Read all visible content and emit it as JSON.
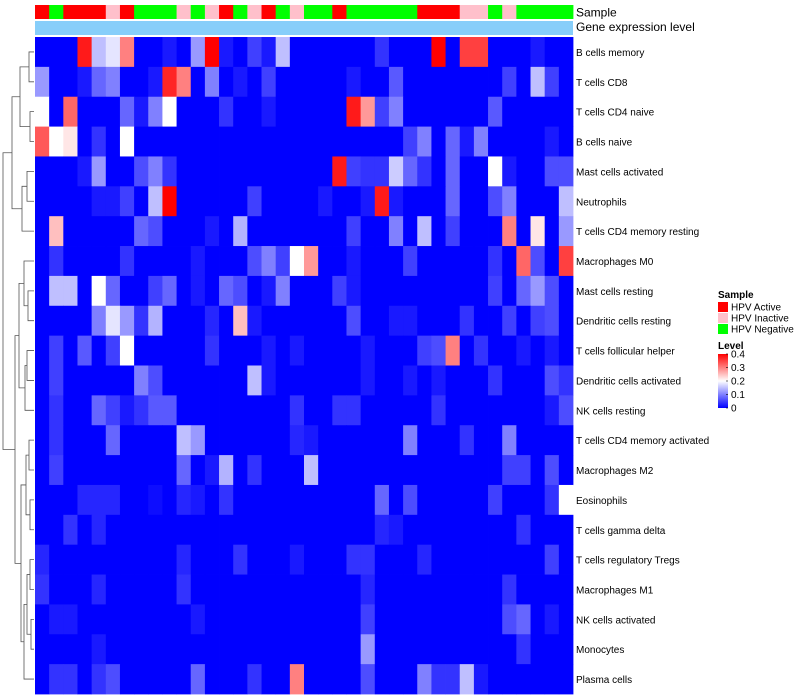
{
  "chart_data": {
    "type": "heatmap",
    "annotation_tracks": [
      {
        "name": "Sample"
      },
      {
        "name": "Gene expression level"
      }
    ],
    "legend": {
      "sample_title": "Sample",
      "sample_entries": [
        {
          "label": "HPV Active",
          "color": "#ff0000"
        },
        {
          "label": "HPV Inactive",
          "color": "#ffc0cb"
        },
        {
          "label": "HPV Negative",
          "color": "#00ff00"
        }
      ],
      "level_title": "Level",
      "level_ticks": [
        {
          "value": 0.4,
          "label": "0.4"
        },
        {
          "value": 0.3,
          "label": "0.3"
        },
        {
          "value": 0.2,
          "label": "0.2"
        },
        {
          "value": 0.1,
          "label": "0.1"
        },
        {
          "value": 0,
          "label": "0"
        }
      ]
    },
    "value_range": [
      0,
      0.4
    ],
    "colors": {
      "low": "#0000ff",
      "mid": "#ffffff",
      "high": "#ff0000",
      "expression_bar": "#87cefa"
    },
    "sample_groups": [
      "HPV Active",
      "HPV Negative",
      "HPV Active",
      "HPV Active",
      "HPV Active",
      "HPV Inactive",
      "HPV Active",
      "HPV Negative",
      "HPV Negative",
      "HPV Negative",
      "HPV Inactive",
      "HPV Negative",
      "HPV Inactive",
      "HPV Active",
      "HPV Negative",
      "HPV Inactive",
      "HPV Active",
      "HPV Negative",
      "HPV Inactive",
      "HPV Negative",
      "HPV Negative",
      "HPV Active",
      "HPV Negative",
      "HPV Negative",
      "HPV Negative",
      "HPV Negative",
      "HPV Negative",
      "HPV Active",
      "HPV Active",
      "HPV Active",
      "HPV Inactive",
      "HPV Inactive",
      "HPV Negative",
      "HPV Inactive",
      "HPV Negative",
      "HPV Negative",
      "HPV Negative",
      "HPV Negative"
    ],
    "rows": [
      {
        "label": "B cells memory",
        "values": [
          0,
          0,
          0,
          0.38,
          0.15,
          0.18,
          0.3,
          0,
          0,
          0.02,
          0,
          0.12,
          0.4,
          0.02,
          0,
          0.05,
          0.02,
          0.15,
          0,
          0,
          0,
          0,
          0,
          0,
          0.04,
          0,
          0,
          0,
          0.4,
          0,
          0.35,
          0.35,
          0,
          0,
          0,
          0.02,
          0,
          0
        ]
      },
      {
        "label": "T cells CD8",
        "values": [
          0.12,
          0,
          0,
          0.02,
          0.08,
          0.1,
          0,
          0,
          0.02,
          0.37,
          0.3,
          0,
          0.1,
          0,
          0.02,
          0,
          0.05,
          0,
          0,
          0,
          0,
          0,
          0.02,
          0,
          0,
          0.07,
          0,
          0,
          0,
          0,
          0,
          0,
          0,
          0.05,
          0,
          0.15,
          0.05,
          0
        ]
      },
      {
        "label": "T cells CD4 naive",
        "values": [
          0.2,
          0,
          0.32,
          0,
          0,
          0,
          0.08,
          0.02,
          0.1,
          0.2,
          0,
          0,
          0,
          0.04,
          0,
          0,
          0.02,
          0,
          0,
          0,
          0,
          0,
          0.38,
          0.28,
          0.05,
          0.1,
          0,
          0,
          0,
          0,
          0,
          0,
          0.07,
          0,
          0,
          0,
          0,
          0
        ]
      },
      {
        "label": "B cells naive",
        "values": [
          0.33,
          0.2,
          0.22,
          0,
          0.04,
          0,
          0.2,
          0,
          0,
          0,
          0,
          0,
          0,
          0,
          0,
          0,
          0,
          0,
          0,
          0,
          0,
          0,
          0,
          0,
          0,
          0,
          0.05,
          0.1,
          0,
          0.08,
          0.02,
          0.1,
          0,
          0,
          0,
          0,
          0.02,
          0
        ]
      },
      {
        "label": "Mast cells activated",
        "values": [
          0,
          0,
          0,
          0.02,
          0.12,
          0,
          0,
          0.06,
          0.1,
          0.04,
          0,
          0,
          0,
          0,
          0,
          0,
          0,
          0,
          0,
          0,
          0,
          0.38,
          0.05,
          0.04,
          0.04,
          0.16,
          0.08,
          0.04,
          0,
          0.08,
          0,
          0,
          0.2,
          0.02,
          0,
          0,
          0.06,
          0.06
        ]
      },
      {
        "label": "Neutrophils",
        "values": [
          0,
          0,
          0,
          0,
          0.02,
          0.02,
          0.05,
          0,
          0.15,
          0.4,
          0,
          0,
          0,
          0,
          0,
          0.05,
          0,
          0,
          0,
          0,
          0.02,
          0,
          0,
          0.02,
          0.38,
          0.02,
          0,
          0,
          0,
          0.08,
          0,
          0,
          0.06,
          0.1,
          0,
          0,
          0,
          0.15
        ]
      },
      {
        "label": "T cells CD4 memory resting",
        "values": [
          0,
          0.25,
          0,
          0,
          0,
          0,
          0,
          0.08,
          0.06,
          0,
          0,
          0,
          0.02,
          0,
          0.14,
          0,
          0,
          0,
          0,
          0,
          0,
          0,
          0.05,
          0,
          0,
          0.1,
          0,
          0.15,
          0,
          0.05,
          0,
          0,
          0,
          0.3,
          0,
          0.22,
          0,
          0.12
        ]
      },
      {
        "label": "Macrophages M0",
        "values": [
          0,
          0.04,
          0,
          0,
          0,
          0,
          0.04,
          0,
          0,
          0,
          0,
          0.02,
          0,
          0,
          0,
          0.06,
          0.1,
          0.05,
          0.2,
          0.28,
          0,
          0,
          0.02,
          0,
          0,
          0,
          0.05,
          0,
          0,
          0,
          0,
          0,
          0.04,
          0,
          0.32,
          0.06,
          0,
          0.35
        ]
      },
      {
        "label": "Mast cells resting",
        "values": [
          0,
          0.15,
          0.15,
          0,
          0.2,
          0.08,
          0,
          0,
          0.05,
          0.08,
          0,
          0.02,
          0,
          0.08,
          0.06,
          0,
          0.02,
          0.1,
          0,
          0,
          0,
          0.05,
          0.02,
          0,
          0,
          0,
          0,
          0,
          0,
          0,
          0,
          0,
          0.05,
          0,
          0.08,
          0.12,
          0.06,
          0
        ]
      },
      {
        "label": "Dendritic cells resting",
        "values": [
          0,
          0,
          0,
          0,
          0.1,
          0.18,
          0.12,
          0.04,
          0.14,
          0,
          0,
          0,
          0.03,
          0,
          0.25,
          0.02,
          0,
          0,
          0,
          0,
          0,
          0,
          0.06,
          0,
          0,
          0.02,
          0.02,
          0,
          0,
          0,
          0.04,
          0,
          0,
          0.05,
          0,
          0.05,
          0.06,
          0
        ]
      },
      {
        "label": "T cells follicular helper",
        "values": [
          0,
          0.05,
          0,
          0.07,
          0,
          0.05,
          0.2,
          0,
          0,
          0,
          0,
          0,
          0.04,
          0,
          0,
          0,
          0.02,
          0,
          0.02,
          0,
          0,
          0,
          0,
          0.02,
          0,
          0,
          0,
          0.05,
          0.06,
          0.3,
          0,
          0.04,
          0,
          0,
          0.02,
          0,
          0.02,
          0
        ]
      },
      {
        "label": "Dendritic cells activated",
        "values": [
          0,
          0.05,
          0,
          0,
          0,
          0,
          0,
          0.1,
          0.06,
          0,
          0,
          0,
          0,
          0,
          0,
          0.15,
          0.02,
          0,
          0,
          0,
          0,
          0,
          0,
          0.02,
          0,
          0,
          0.02,
          0,
          0.02,
          0,
          0,
          0,
          0.04,
          0,
          0,
          0,
          0.06,
          0.04
        ]
      },
      {
        "label": "NK cells resting",
        "values": [
          0,
          0.04,
          0,
          0,
          0.08,
          0.05,
          0.02,
          0.04,
          0.07,
          0.07,
          0,
          0,
          0,
          0,
          0,
          0,
          0,
          0,
          0.04,
          0,
          0,
          0.04,
          0.04,
          0,
          0,
          0,
          0,
          0,
          0.04,
          0,
          0,
          0,
          0,
          0,
          0,
          0,
          0.02,
          0.06
        ]
      },
      {
        "label": "T cells CD4 memory activated",
        "values": [
          0,
          0.04,
          0,
          0,
          0,
          0.08,
          0,
          0,
          0,
          0,
          0.15,
          0.12,
          0,
          0,
          0,
          0,
          0,
          0,
          0.03,
          0.02,
          0,
          0,
          0,
          0,
          0,
          0,
          0.1,
          0,
          0,
          0,
          0.04,
          0,
          0,
          0.1,
          0,
          0,
          0,
          0
        ]
      },
      {
        "label": "Macrophages M2",
        "values": [
          0,
          0.05,
          0,
          0,
          0,
          0,
          0,
          0,
          0,
          0,
          0.08,
          0,
          0.02,
          0.14,
          0,
          0.04,
          0,
          0,
          0,
          0.15,
          0,
          0,
          0,
          0,
          0,
          0,
          0,
          0,
          0,
          0,
          0,
          0,
          0,
          0.05,
          0.05,
          0,
          0.06,
          0
        ]
      },
      {
        "label": "Eosinophils",
        "values": [
          0,
          0,
          0,
          0.03,
          0.03,
          0.03,
          0,
          0,
          0.01,
          0,
          0.03,
          0.02,
          0,
          0.04,
          0,
          0,
          0,
          0,
          0,
          0,
          0,
          0,
          0,
          0,
          0.08,
          0,
          0.06,
          0,
          0,
          0,
          0,
          0,
          0.05,
          0,
          0,
          0,
          0.04,
          0.2
        ]
      },
      {
        "label": "T cells gamma delta",
        "values": [
          0,
          0,
          0.04,
          0,
          0.03,
          0,
          0,
          0,
          0,
          0,
          0,
          0,
          0,
          0,
          0,
          0,
          0,
          0,
          0,
          0,
          0,
          0,
          0,
          0,
          0.03,
          0.02,
          0,
          0,
          0,
          0,
          0,
          0,
          0,
          0,
          0.04,
          0,
          0,
          0
        ]
      },
      {
        "label": "T cells regulatory  Tregs",
        "values": [
          0.03,
          0,
          0,
          0,
          0,
          0,
          0,
          0,
          0,
          0,
          0.03,
          0,
          0,
          0,
          0.04,
          0,
          0,
          0,
          0.02,
          0,
          0,
          0,
          0.04,
          0.04,
          0,
          0,
          0,
          0.03,
          0,
          0,
          0,
          0,
          0,
          0,
          0,
          0,
          0.05,
          0
        ]
      },
      {
        "label": "Macrophages M1",
        "values": [
          0.04,
          0,
          0,
          0,
          0.03,
          0,
          0,
          0,
          0,
          0,
          0.04,
          0,
          0,
          0,
          0,
          0,
          0,
          0,
          0,
          0,
          0,
          0,
          0,
          0.03,
          0,
          0,
          0,
          0,
          0,
          0,
          0,
          0,
          0,
          0.04,
          0,
          0,
          0,
          0
        ]
      },
      {
        "label": "NK cells activated",
        "values": [
          0,
          0.02,
          0.02,
          0,
          0,
          0,
          0,
          0,
          0,
          0,
          0,
          0.02,
          0,
          0,
          0,
          0,
          0,
          0,
          0,
          0,
          0,
          0,
          0,
          0.05,
          0,
          0,
          0,
          0,
          0,
          0,
          0,
          0,
          0,
          0.06,
          0.08,
          0,
          0.02,
          0
        ]
      },
      {
        "label": "Monocytes",
        "values": [
          0,
          0,
          0,
          0,
          0.02,
          0,
          0,
          0,
          0,
          0,
          0,
          0,
          0,
          0,
          0,
          0,
          0,
          0,
          0,
          0,
          0,
          0,
          0,
          0.12,
          0,
          0,
          0,
          0,
          0,
          0,
          0,
          0,
          0,
          0,
          0.04,
          0,
          0,
          0
        ]
      },
      {
        "label": "Plasma cells",
        "values": [
          0,
          0.04,
          0.04,
          0,
          0.04,
          0.06,
          0,
          0,
          0,
          0,
          0,
          0.08,
          0,
          0,
          0,
          0.04,
          0,
          0,
          0.3,
          0,
          0,
          0,
          0,
          0.06,
          0,
          0,
          0,
          0.1,
          0.04,
          0.04,
          0.15,
          0.02,
          0,
          0,
          0,
          0,
          0,
          0
        ]
      }
    ]
  }
}
